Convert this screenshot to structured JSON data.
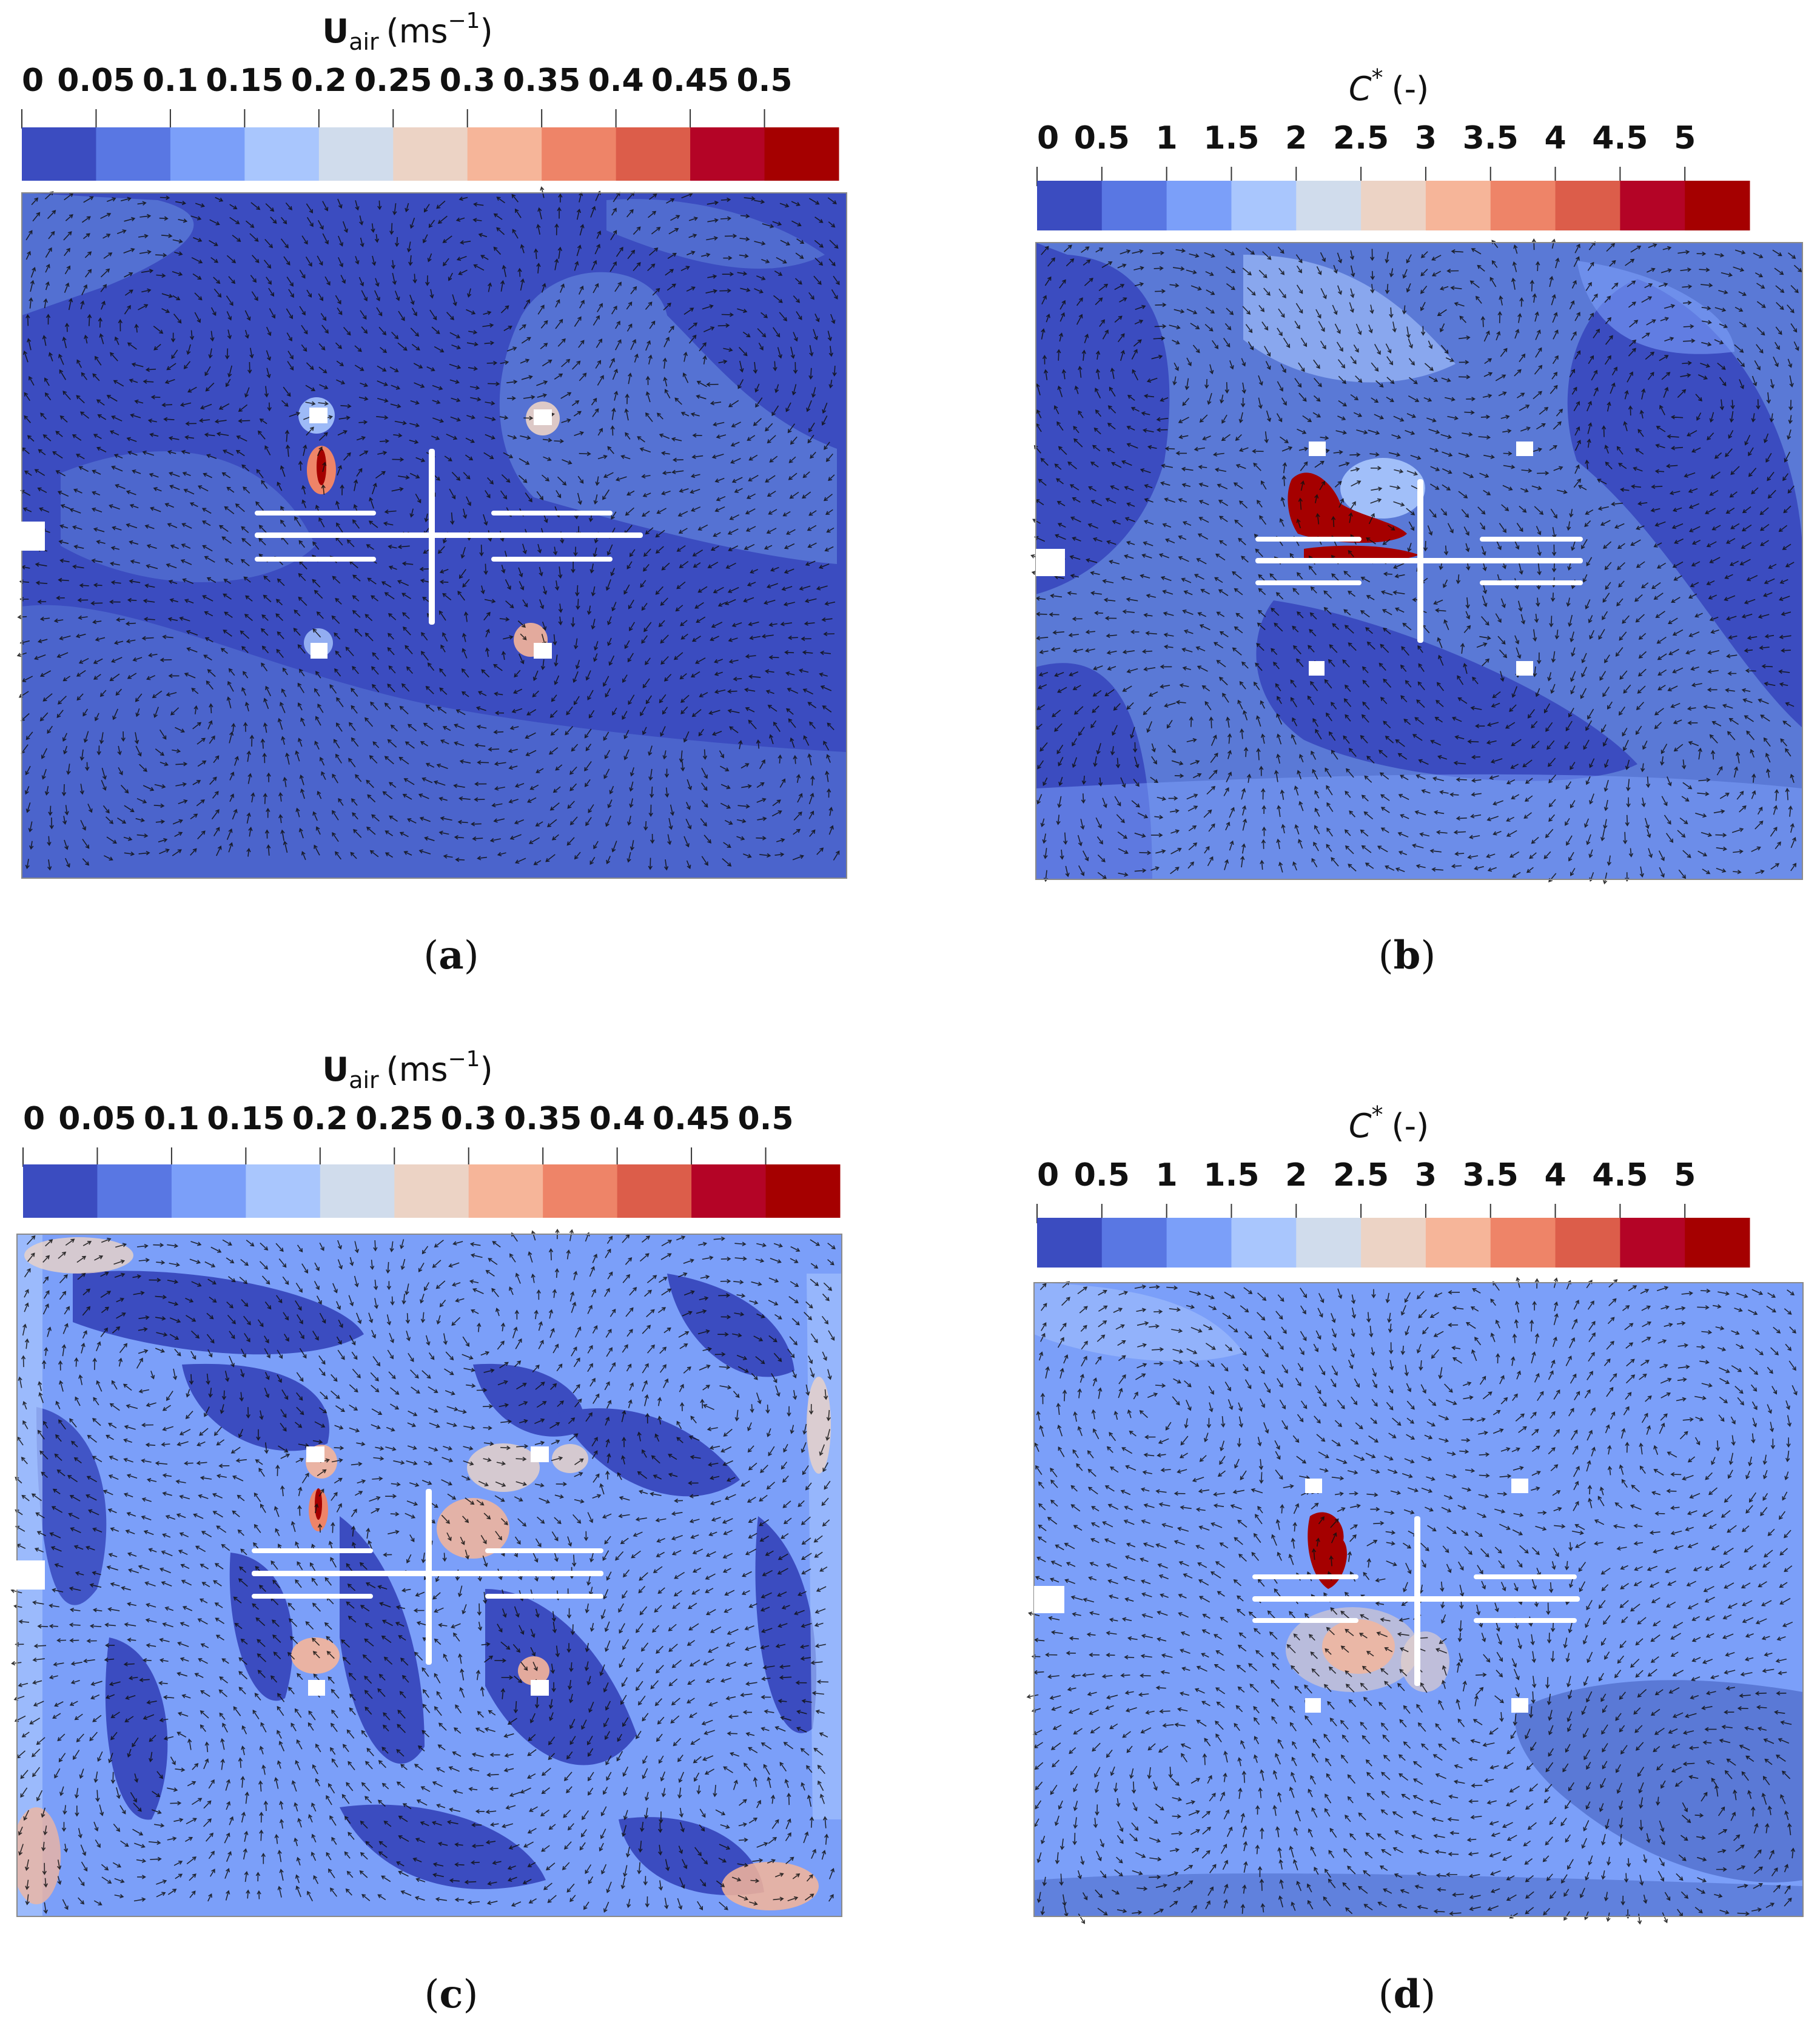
{
  "panels": [
    {
      "id": "a",
      "caption": "a",
      "colorbar": {
        "symbol": "U",
        "subscript": "air",
        "unit_base": "(ms",
        "unit_exp": "−1",
        "unit_close": ")",
        "ticks": [
          "0",
          "0.05",
          "0.1",
          "0.15",
          "0.2",
          "0.25",
          "0.3",
          "0.35",
          "0.4",
          "0.45",
          "0.5"
        ],
        "colors": [
          "#3b4cc0",
          "#5977e3",
          "#7b9ff9",
          "#a9c6fd",
          "#d0dcec",
          "#ecd3c5",
          "#f6b599",
          "#ee8468",
          "#dc5d4a",
          "#b40426",
          "#a50000"
        ]
      }
    },
    {
      "id": "b",
      "caption": "b",
      "colorbar": {
        "symbol": "C",
        "superscript": "*",
        "unit": "(-)",
        "ticks": [
          "0",
          "0.5",
          "1",
          "1.5",
          "2",
          "2.5",
          "3",
          "3.5",
          "4",
          "4.5",
          "5"
        ],
        "colors": [
          "#3b4cc0",
          "#5977e3",
          "#7b9ff9",
          "#a9c6fd",
          "#d0dcec",
          "#ecd3c5",
          "#f6b599",
          "#ee8468",
          "#dc5d4a",
          "#b40426",
          "#a50000"
        ]
      }
    },
    {
      "id": "c",
      "caption": "c",
      "colorbar": {
        "symbol": "U",
        "subscript": "air",
        "unit_base": "(ms",
        "unit_exp": "−1",
        "unit_close": ")",
        "ticks": [
          "0",
          "0.05",
          "0.1",
          "0.15",
          "0.2",
          "0.25",
          "0.3",
          "0.35",
          "0.4",
          "0.45",
          "0.5"
        ],
        "colors": [
          "#3b4cc0",
          "#5977e3",
          "#7b9ff9",
          "#a9c6fd",
          "#d0dcec",
          "#ecd3c5",
          "#f6b599",
          "#ee8468",
          "#dc5d4a",
          "#b40426",
          "#a50000"
        ]
      }
    },
    {
      "id": "d",
      "caption": "d",
      "colorbar": {
        "symbol": "C",
        "superscript": "*",
        "unit": "(-)",
        "ticks": [
          "0",
          "0.5",
          "1",
          "1.5",
          "2",
          "2.5",
          "3",
          "3.5",
          "4",
          "4.5",
          "5"
        ],
        "colors": [
          "#3b4cc0",
          "#5977e3",
          "#7b9ff9",
          "#a9c6fd",
          "#d0dcec",
          "#ecd3c5",
          "#f6b599",
          "#ee8468",
          "#dc5d4a",
          "#b40426",
          "#a50000"
        ]
      }
    }
  ],
  "field_colors": {
    "deep": "#3b4cc0",
    "mid": "#5a79d6",
    "light": "#7b9ff9",
    "pale": "#a9c6fd",
    "warm": "#ecd3c5",
    "orange": "#f6b599",
    "red": "#b40426",
    "darkred": "#a50000"
  }
}
